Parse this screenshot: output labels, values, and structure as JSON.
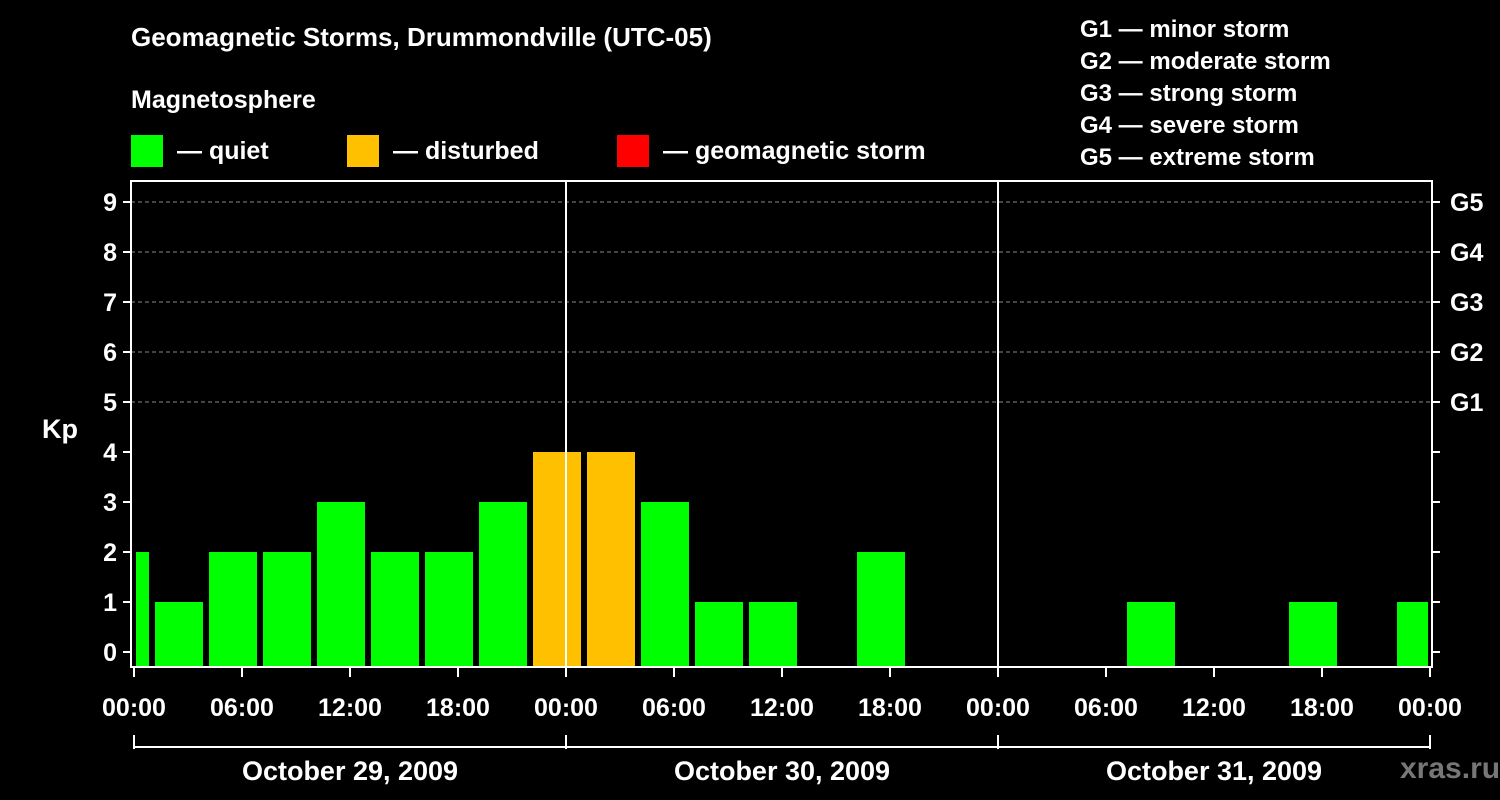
{
  "header": {
    "title": "Geomagnetic Storms, Drummondville (UTC-05)",
    "subtitle": "Magnetosphere"
  },
  "legend": [
    {
      "color": "#00ff00",
      "label": "— quiet"
    },
    {
      "color": "#ffc000",
      "label": "— disturbed"
    },
    {
      "color": "#ff0000",
      "label": "— geomagnetic storm"
    }
  ],
  "g_legend": [
    "G1 — minor storm",
    "G2 — moderate storm",
    "G3 — strong storm",
    "G4 — severe storm",
    "G5 — extreme storm"
  ],
  "watermark": "xras.ru",
  "chart_data": {
    "type": "bar",
    "ylabel": "Kp",
    "ylim": [
      0,
      9
    ],
    "yticks": [
      "0",
      "1",
      "2",
      "3",
      "4",
      "5",
      "6",
      "7",
      "8",
      "9"
    ],
    "right_axis_labels": [
      {
        "kp": 5,
        "label": "G1"
      },
      {
        "kp": 6,
        "label": "G2"
      },
      {
        "kp": 7,
        "label": "G3"
      },
      {
        "kp": 8,
        "label": "G4"
      },
      {
        "kp": 9,
        "label": "G5"
      }
    ],
    "xtick_labels": [
      "00:00",
      "06:00",
      "12:00",
      "18:00",
      "00:00",
      "06:00",
      "12:00",
      "18:00",
      "00:00",
      "06:00",
      "12:00",
      "18:00",
      "00:00"
    ],
    "dates": [
      "October 29, 2009",
      "October 30, 2009",
      "October 31, 2009"
    ],
    "grid": "dashed horizontal at Kp 5-9",
    "bars": [
      {
        "start_hour": 0,
        "end_hour": 1,
        "kp": 2,
        "status": "quiet"
      },
      {
        "start_hour": 1,
        "end_hour": 4,
        "kp": 1,
        "status": "quiet"
      },
      {
        "start_hour": 4,
        "end_hour": 7,
        "kp": 2,
        "status": "quiet"
      },
      {
        "start_hour": 7,
        "end_hour": 10,
        "kp": 2,
        "status": "quiet"
      },
      {
        "start_hour": 10,
        "end_hour": 13,
        "kp": 3,
        "status": "quiet"
      },
      {
        "start_hour": 13,
        "end_hour": 16,
        "kp": 2,
        "status": "quiet"
      },
      {
        "start_hour": 16,
        "end_hour": 19,
        "kp": 2,
        "status": "quiet"
      },
      {
        "start_hour": 19,
        "end_hour": 22,
        "kp": 3,
        "status": "quiet"
      },
      {
        "start_hour": 22,
        "end_hour": 25,
        "kp": 4,
        "status": "disturbed"
      },
      {
        "start_hour": 25,
        "end_hour": 28,
        "kp": 4,
        "status": "disturbed"
      },
      {
        "start_hour": 28,
        "end_hour": 31,
        "kp": 3,
        "status": "quiet"
      },
      {
        "start_hour": 31,
        "end_hour": 34,
        "kp": 1,
        "status": "quiet"
      },
      {
        "start_hour": 34,
        "end_hour": 37,
        "kp": 1,
        "status": "quiet"
      },
      {
        "start_hour": 37,
        "end_hour": 40,
        "kp": 0,
        "status": "quiet"
      },
      {
        "start_hour": 40,
        "end_hour": 43,
        "kp": 2,
        "status": "quiet"
      },
      {
        "start_hour": 43,
        "end_hour": 46,
        "kp": 0,
        "status": "quiet"
      },
      {
        "start_hour": 46,
        "end_hour": 49,
        "kp": 0,
        "status": "quiet"
      },
      {
        "start_hour": 49,
        "end_hour": 52,
        "kp": 0,
        "status": "quiet"
      },
      {
        "start_hour": 52,
        "end_hour": 55,
        "kp": 0,
        "status": "quiet"
      },
      {
        "start_hour": 55,
        "end_hour": 58,
        "kp": 1,
        "status": "quiet"
      },
      {
        "start_hour": 58,
        "end_hour": 61,
        "kp": 0,
        "status": "quiet"
      },
      {
        "start_hour": 61,
        "end_hour": 64,
        "kp": 0,
        "status": "quiet"
      },
      {
        "start_hour": 64,
        "end_hour": 67,
        "kp": 1,
        "status": "quiet"
      },
      {
        "start_hour": 67,
        "end_hour": 70,
        "kp": 0,
        "status": "quiet"
      },
      {
        "start_hour": 70,
        "end_hour": 72,
        "kp": 1,
        "status": "quiet"
      }
    ]
  }
}
